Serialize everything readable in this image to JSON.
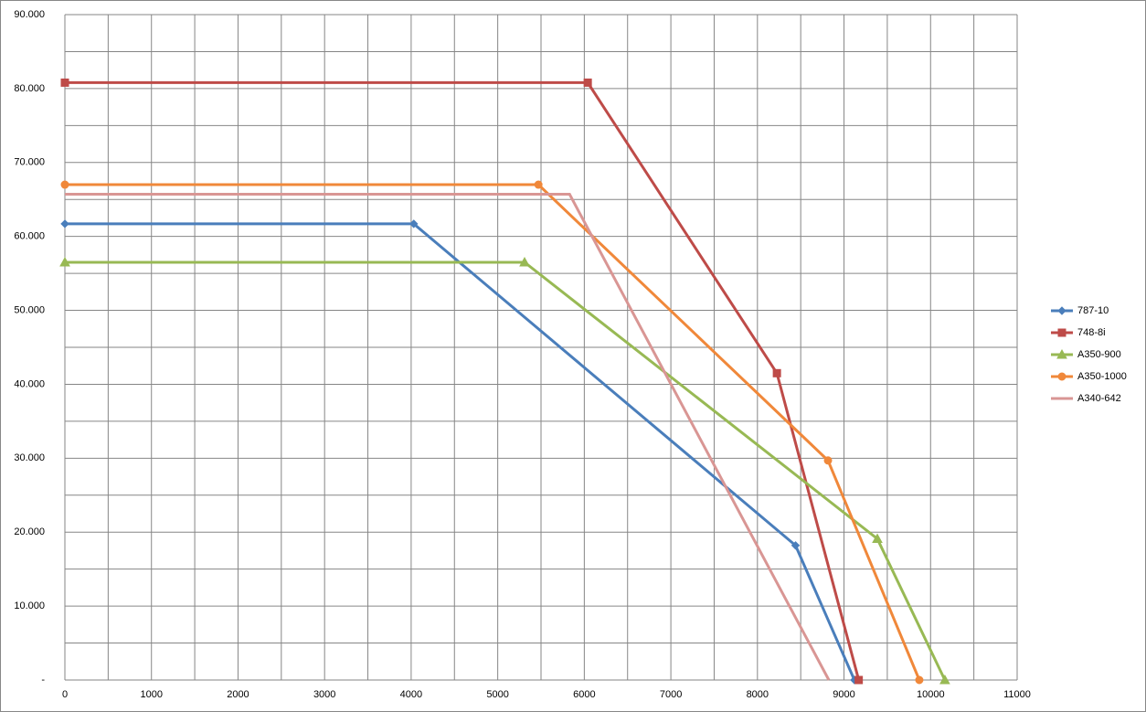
{
  "chart_data": {
    "type": "line",
    "xlim": [
      0,
      11000
    ],
    "xticks": [
      0,
      1000,
      2000,
      3000,
      4000,
      5000,
      6000,
      7000,
      8000,
      9000,
      10000,
      11000
    ],
    "ylim": [
      0,
      90
    ],
    "yticks": [
      {
        "value": 0,
        "label": "-"
      },
      {
        "value": 10,
        "label": "10.000"
      },
      {
        "value": 20,
        "label": "20.000"
      },
      {
        "value": 30,
        "label": "30.000"
      },
      {
        "value": 40,
        "label": "40.000"
      },
      {
        "value": 50,
        "label": "50.000"
      },
      {
        "value": 60,
        "label": "60.000"
      },
      {
        "value": 70,
        "label": "70.000"
      },
      {
        "value": 80,
        "label": "80.000"
      },
      {
        "value": 90,
        "label": "90.000"
      }
    ],
    "grid": true,
    "legend": "right",
    "series": [
      {
        "name": "787-10",
        "color": "#4a7ebb",
        "marker": "diamond",
        "x": [
          0,
          4030,
          8440,
          9120
        ],
        "values": [
          61.7,
          61.7,
          18.2,
          0
        ]
      },
      {
        "name": "748-8i",
        "color": "#be4b48",
        "marker": "square",
        "x": [
          0,
          6040,
          8225,
          9170
        ],
        "values": [
          80.8,
          80.8,
          41.5,
          0
        ]
      },
      {
        "name": "A350-900",
        "color": "#98b954",
        "marker": "triangle",
        "x": [
          0,
          5310,
          9385,
          10165
        ],
        "values": [
          56.5,
          56.5,
          19.1,
          0
        ]
      },
      {
        "name": "A350-1000",
        "color": "#f0883a",
        "marker": "circle",
        "x": [
          0,
          5470,
          8815,
          9870
        ],
        "values": [
          67.0,
          67.0,
          29.7,
          0
        ]
      },
      {
        "name": "A340-642",
        "color": "#d99694",
        "marker": "none",
        "x": [
          0,
          5830,
          8825
        ],
        "values": [
          65.7,
          65.7,
          0
        ]
      }
    ]
  }
}
